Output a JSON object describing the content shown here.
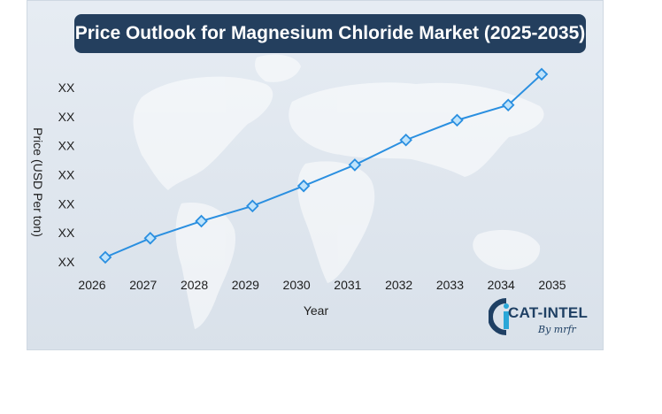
{
  "title": "Price Outlook for Magnesium Chloride Market (2025-2035)",
  "chart_data": {
    "type": "line",
    "title": "Price Outlook for Magnesium Chloride Market (2025-2035)",
    "xlabel": "Year",
    "ylabel": "Price (USD Per ton)",
    "categories": [
      "2026",
      "2027",
      "2028",
      "2029",
      "2030",
      "2031",
      "2032",
      "2033",
      "2034",
      "2035"
    ],
    "series": [
      {
        "name": "Price",
        "values": [
          4.4,
          12.2,
          19.2,
          25.4,
          33.6,
          42.2,
          52.4,
          60.5,
          66.7,
          79.3
        ]
      }
    ],
    "ylim": [
      0,
      80
    ],
    "ytick_labels": [
      "XX",
      "XX",
      "XX",
      "XX",
      "XX",
      "XX",
      "XX"
    ],
    "grid": false,
    "line_color": "#2a8fe0",
    "marker": "diamond"
  },
  "logo": {
    "main": "CAT-INTEL",
    "sub": "By mrfr"
  }
}
